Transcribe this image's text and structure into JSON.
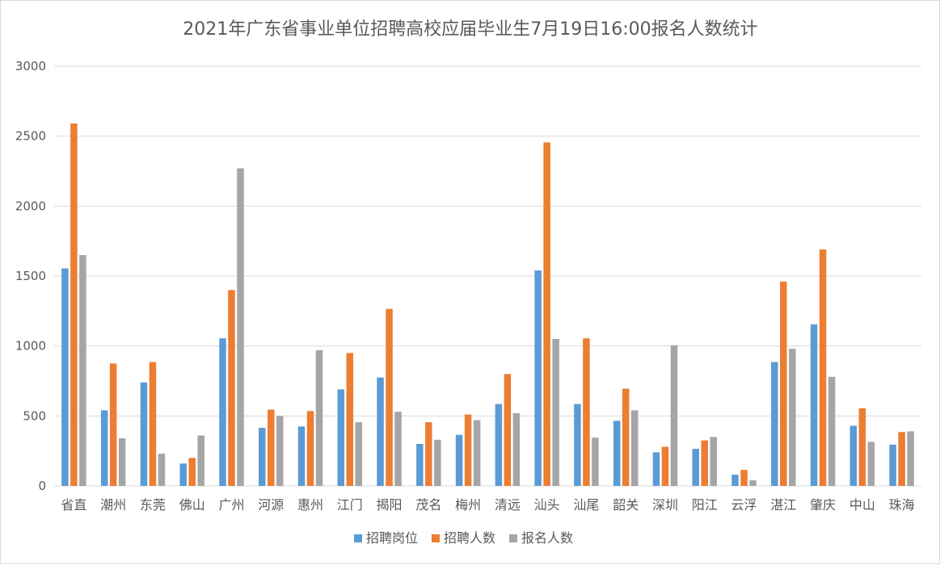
{
  "chart_data": {
    "type": "bar",
    "title": "2021年广东省事业单位招聘高校应届毕业生7月19日16:00报名人数统计",
    "xlabel": "",
    "ylabel": "",
    "ylim": [
      0,
      3000
    ],
    "yticks": [
      0,
      500,
      1000,
      1500,
      2000,
      2500,
      3000
    ],
    "grid": true,
    "legend_position": "bottom",
    "categories": [
      "省直",
      "潮州",
      "东莞",
      "佛山",
      "广州",
      "河源",
      "惠州",
      "江门",
      "揭阳",
      "茂名",
      "梅州",
      "清远",
      "汕头",
      "汕尾",
      "韶关",
      "深圳",
      "阳江",
      "云浮",
      "湛江",
      "肇庆",
      "中山",
      "珠海"
    ],
    "series": [
      {
        "name": "招聘岗位",
        "color": "#5b9bd5",
        "values": [
          1555,
          540,
          740,
          160,
          1055,
          415,
          425,
          690,
          775,
          300,
          365,
          585,
          1540,
          585,
          465,
          240,
          265,
          80,
          885,
          1155,
          430,
          295
        ]
      },
      {
        "name": "招聘人数",
        "color": "#ed7d31",
        "values": [
          2590,
          875,
          885,
          200,
          1400,
          545,
          535,
          950,
          1265,
          455,
          510,
          800,
          2455,
          1055,
          695,
          280,
          325,
          115,
          1460,
          1690,
          555,
          385
        ]
      },
      {
        "name": "报名人数",
        "color": "#a5a5a5",
        "values": [
          1650,
          340,
          230,
          360,
          2270,
          500,
          970,
          455,
          530,
          330,
          470,
          520,
          1050,
          345,
          540,
          1005,
          350,
          40,
          980,
          780,
          315,
          390
        ]
      }
    ]
  }
}
